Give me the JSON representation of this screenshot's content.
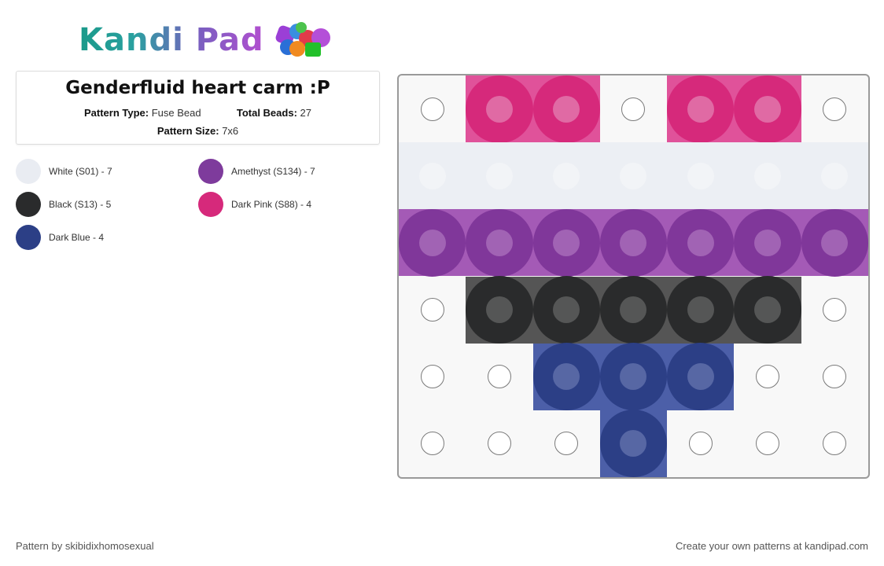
{
  "logo": {
    "text": "Kandi Pad",
    "icon": "bead-pile-icon"
  },
  "pattern": {
    "title": "Genderfluid heart carm :P",
    "type_label": "Pattern Type:",
    "type_value": "Fuse Bead",
    "beads_label": "Total Beads:",
    "beads_value": "27",
    "size_label": "Pattern Size:",
    "size_value": "7x6"
  },
  "legend": [
    {
      "label": "White (S01) - 7",
      "color": "#e9ecf2"
    },
    {
      "label": "Amethyst (S134) - 7",
      "color": "#7e3b9c"
    },
    {
      "label": "Black (S13) - 5",
      "color": "#2a2b2c"
    },
    {
      "label": "Dark Pink (S88) - 4",
      "color": "#d6297b"
    },
    {
      "label": "Dark Blue - 4",
      "color": "#2c3f86"
    }
  ],
  "palette": {
    "W": {
      "cell": "#eceff4",
      "bead": "#eceff4",
      "hole": "#f2f4f7"
    },
    "A": {
      "cell": "#a45ab6",
      "bead": "#80379a",
      "hole": "#a163b4"
    },
    "K": {
      "cell": "#555555",
      "bead": "#2a2b2c",
      "hole": "#555656"
    },
    "P": {
      "cell": "#e0529a",
      "bead": "#d6297b",
      "hole": "#e06aa4"
    },
    "B": {
      "cell": "#4c5fa8",
      "bead": "#2c3f86",
      "hole": "#5767a4"
    }
  },
  "grid": [
    [
      "",
      "P",
      "P",
      "",
      "P",
      "P",
      ""
    ],
    [
      "W",
      "W",
      "W",
      "W",
      "W",
      "W",
      "W"
    ],
    [
      "A",
      "A",
      "A",
      "A",
      "A",
      "A",
      "A"
    ],
    [
      "",
      "K",
      "K",
      "K",
      "K",
      "K",
      ""
    ],
    [
      "",
      "",
      "B",
      "B",
      "B",
      "",
      ""
    ],
    [
      "",
      "",
      "",
      "B",
      "",
      "",
      ""
    ]
  ],
  "footer": {
    "author": "Pattern by skibidixhomosexual",
    "cta": "Create your own patterns at kandipad.com"
  }
}
